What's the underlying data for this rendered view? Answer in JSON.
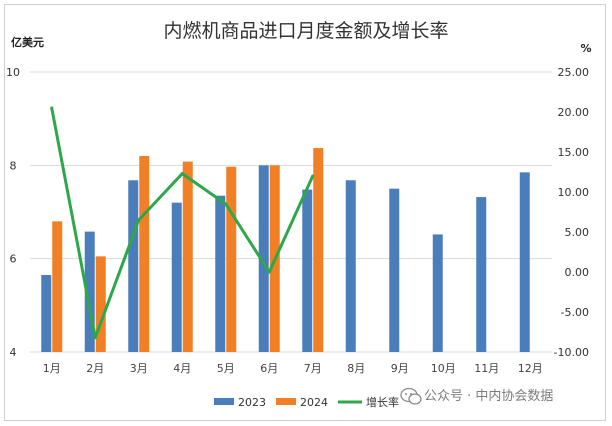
{
  "chart_data": {
    "type": "bar",
    "title": "内燃机商品进口月度金额及增长率",
    "left_unit": "亿美元",
    "right_unit": "%",
    "categories": [
      "1月",
      "2月",
      "3月",
      "4月",
      "5月",
      "6月",
      "7月",
      "8月",
      "9月",
      "10月",
      "11月",
      "12月"
    ],
    "series": [
      {
        "name": "2023",
        "type": "bar",
        "axis": "left",
        "color": "#4a7ebb",
        "values": [
          5.65,
          6.58,
          7.68,
          7.2,
          7.35,
          8.0,
          7.48,
          7.68,
          7.5,
          6.52,
          7.32,
          7.85
        ]
      },
      {
        "name": "2024",
        "type": "bar",
        "axis": "left",
        "color": "#f07f26",
        "values": [
          6.8,
          6.05,
          8.2,
          8.08,
          7.97,
          8.0,
          8.37,
          null,
          null,
          null,
          null,
          null
        ]
      },
      {
        "name": "增长率",
        "type": "line",
        "axis": "right",
        "color": "#2ca84a",
        "values": [
          20.5,
          -8.2,
          6.5,
          12.3,
          8.5,
          0.0,
          12.0,
          null,
          null,
          null,
          null,
          null
        ]
      }
    ],
    "ylim_left": [
      4,
      10
    ],
    "yticks_left": [
      "4",
      "6",
      "8",
      "10"
    ],
    "ylim_right": [
      -10,
      25
    ],
    "yticks_right": [
      "-10.00",
      "-5.00",
      "0.00",
      "5.00",
      "10.00",
      "15.00",
      "20.00",
      "25.00"
    ],
    "grid": true,
    "legend": "bottom"
  },
  "watermark": "公众号 · 中内协会数据",
  "watermark_icon": "wechat-icon"
}
